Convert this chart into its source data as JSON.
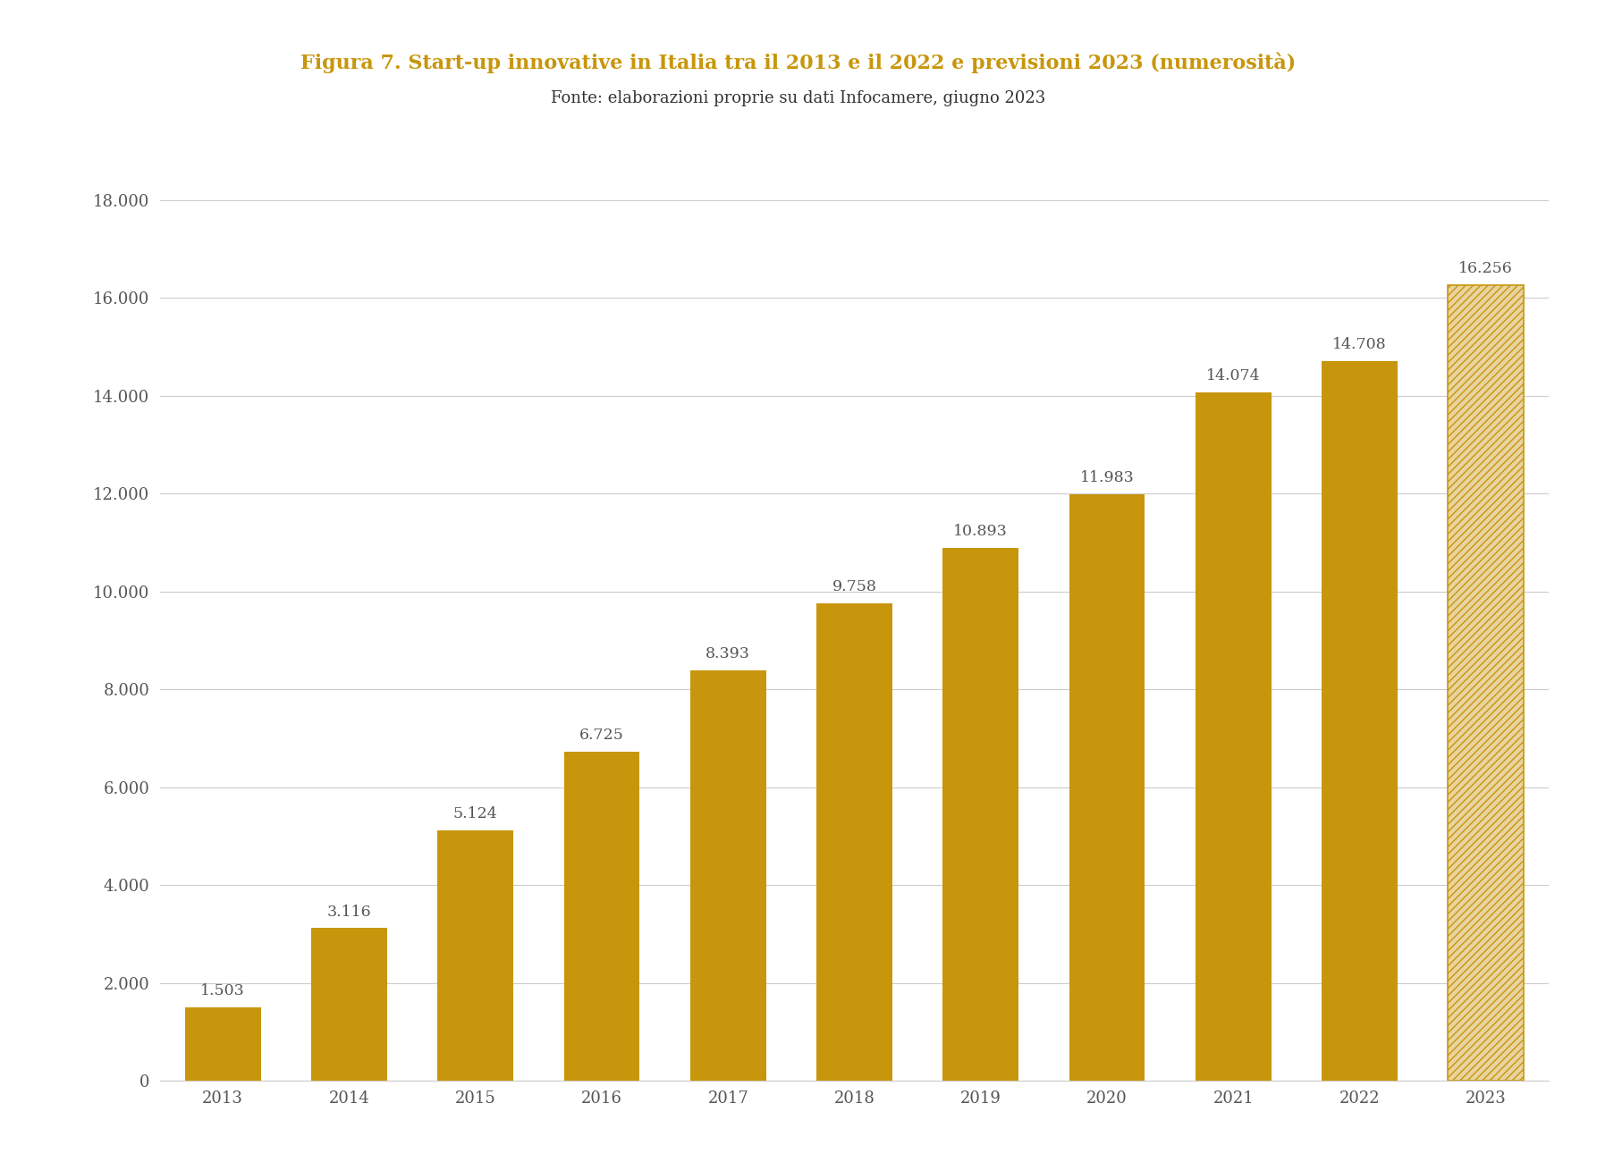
{
  "title": "Figura 7. Start-up innovative in Italia tra il 2013 e il 2022 e previsioni 2023 (numerosità)",
  "subtitle": "Fonte: elaborazioni proprie su dati Infocamere, giugno 2023",
  "title_color": "#C8960C",
  "subtitle_color": "#333333",
  "title_fontsize": 16,
  "subtitle_fontsize": 13,
  "years": [
    "2013",
    "2014",
    "2015",
    "2016",
    "2017",
    "2018",
    "2019",
    "2020",
    "2021",
    "2022",
    "2023"
  ],
  "values": [
    1503,
    3116,
    5124,
    6725,
    8393,
    9758,
    10893,
    11983,
    14074,
    14708,
    16256
  ],
  "labels": [
    "1.503",
    "3.116",
    "5.124",
    "6.725",
    "8.393",
    "9.758",
    "10.893",
    "11.983",
    "14.074",
    "14.708",
    "16.256"
  ],
  "bar_color": "#C8960C",
  "hatch_face_color": "#E8D4A0",
  "hatch_edge_color": "#C8960C",
  "background_color": "#ffffff",
  "ylim": [
    0,
    19000
  ],
  "yticks": [
    0,
    2000,
    4000,
    6000,
    8000,
    10000,
    12000,
    14000,
    16000,
    18000
  ],
  "ytick_labels": [
    "0",
    "2.000",
    "4.000",
    "6.000",
    "8.000",
    "10.000",
    "12.000",
    "14.000",
    "16.000",
    "18.000"
  ],
  "grid_color": "#cccccc",
  "tick_color": "#555555",
  "label_fontsize": 12.5,
  "axis_fontsize": 13,
  "bar_width": 0.6
}
